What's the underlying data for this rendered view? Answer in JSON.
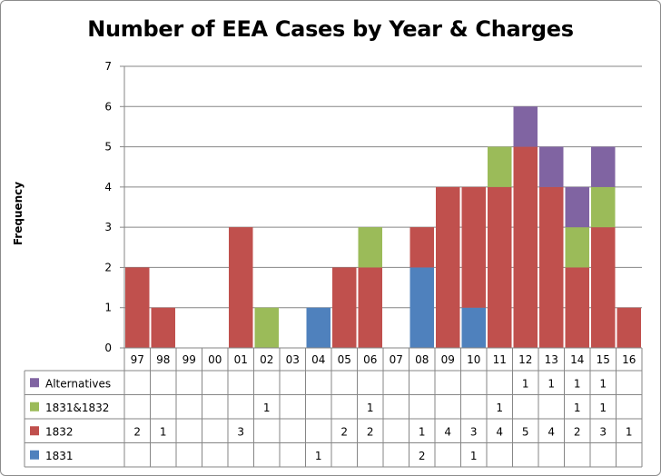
{
  "chart_data": {
    "type": "bar",
    "stacked": true,
    "title": "Number of EEA Cases by Year & Charges",
    "xlabel": "",
    "ylabel": "Frequency",
    "ylim": [
      0,
      7
    ],
    "yticks": [
      0,
      1,
      2,
      3,
      4,
      5,
      6,
      7
    ],
    "grid": true,
    "legend": "data-table-below",
    "categories": [
      "97",
      "98",
      "99",
      "00",
      "01",
      "02",
      "03",
      "04",
      "05",
      "06",
      "07",
      "08",
      "09",
      "10",
      "11",
      "12",
      "13",
      "14",
      "15",
      "16"
    ],
    "series": [
      {
        "name": "1831",
        "color": "#4f81bd",
        "values": [
          0,
          0,
          0,
          0,
          0,
          0,
          0,
          1,
          0,
          0,
          0,
          2,
          0,
          1,
          0,
          0,
          0,
          0,
          0,
          0
        ]
      },
      {
        "name": "1832",
        "color": "#c0504d",
        "values": [
          2,
          1,
          0,
          0,
          3,
          0,
          0,
          0,
          2,
          2,
          0,
          1,
          4,
          3,
          4,
          5,
          4,
          2,
          3,
          1
        ]
      },
      {
        "name": "1831&1832",
        "color": "#9bbb59",
        "values": [
          0,
          0,
          0,
          0,
          0,
          1,
          0,
          0,
          0,
          1,
          0,
          0,
          0,
          0,
          1,
          0,
          0,
          1,
          1,
          0
        ]
      },
      {
        "name": "Alternatives",
        "color": "#8064a2",
        "values": [
          0,
          0,
          0,
          0,
          0,
          0,
          0,
          0,
          0,
          0,
          0,
          0,
          0,
          0,
          0,
          1,
          1,
          1,
          1,
          0
        ]
      }
    ],
    "table_rows_order": [
      "Alternatives",
      "1831&1832",
      "1832",
      "1831"
    ]
  }
}
